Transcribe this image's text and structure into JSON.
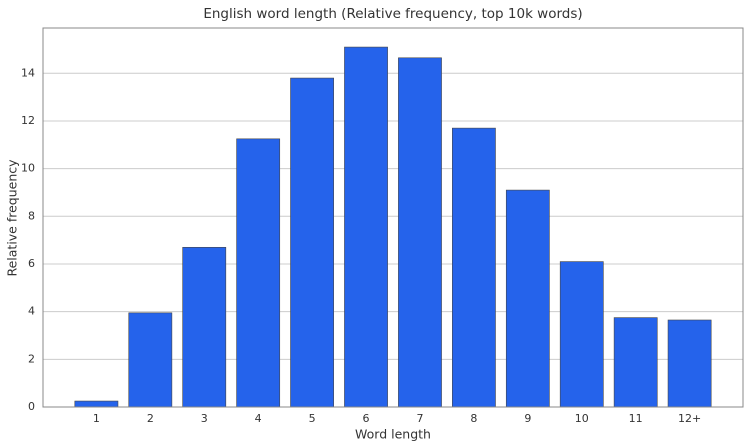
{
  "chart_data": {
    "type": "bar",
    "title": "English word length (Relative frequency, top 10k words)",
    "x_label": "Word length",
    "y_label": "Relative frequency",
    "categories": [
      "1",
      "2",
      "3",
      "4",
      "5",
      "6",
      "7",
      "8",
      "9",
      "10",
      "11",
      "12+"
    ],
    "values": [
      0.25,
      3.95,
      6.7,
      11.25,
      13.8,
      15.1,
      14.65,
      11.7,
      9.1,
      6.1,
      3.75,
      3.65
    ],
    "color": "#2563eb",
    "ylim": [
      0,
      15.9
    ],
    "yticks": [
      0,
      2,
      4,
      6,
      8,
      10,
      12,
      14
    ],
    "grid": true
  }
}
